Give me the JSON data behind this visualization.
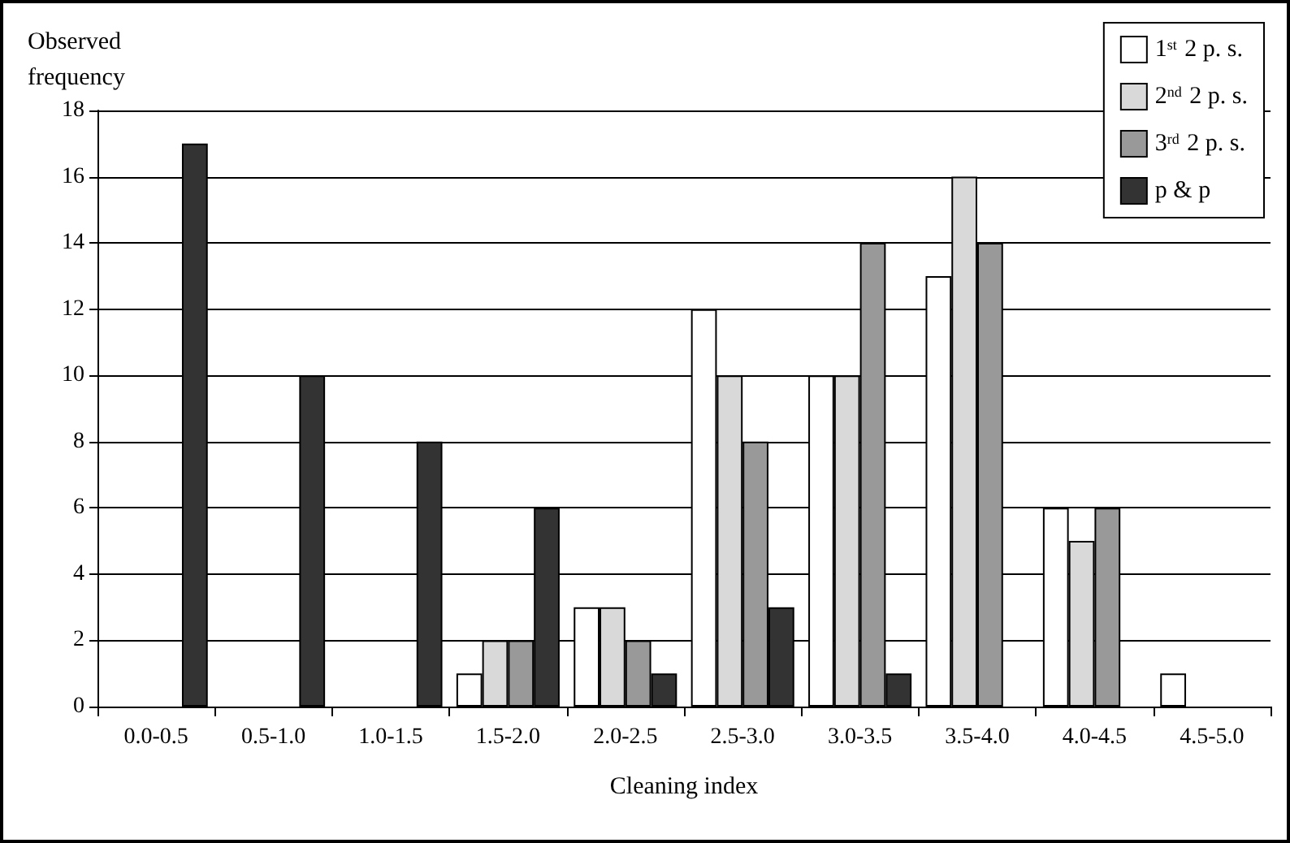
{
  "chart_data": {
    "type": "bar",
    "ylabel": "Observed\nfrequency",
    "xlabel": "Cleaning index",
    "categories": [
      "0.0-0.5",
      "0.5-1.0",
      "1.0-1.5",
      "1.5-2.0",
      "2.0-2.5",
      "2.5-3.0",
      "3.0-3.5",
      "3.5-4.0",
      "4.0-4.5",
      "4.5-5.0"
    ],
    "series": [
      {
        "name": "1$^{st}$ 2 p. s.",
        "color": "#ffffff",
        "values": [
          0,
          0,
          0,
          1,
          3,
          12,
          10,
          13,
          6,
          1
        ]
      },
      {
        "name": "2$^{nd}$ 2 p. s.",
        "color": "#d9d9d9",
        "values": [
          0,
          0,
          0,
          2,
          3,
          10,
          10,
          16,
          5,
          0
        ]
      },
      {
        "name": "3$^{rd}$ 2 p. s.",
        "color": "#999999",
        "values": [
          0,
          0,
          0,
          2,
          2,
          8,
          14,
          14,
          6,
          0
        ]
      },
      {
        "name": "p & p",
        "color": "#333333",
        "values": [
          17,
          10,
          8,
          6,
          1,
          3,
          1,
          0,
          0,
          0
        ]
      }
    ],
    "ylim": [
      0,
      18
    ],
    "yticks": [
      0,
      2,
      4,
      6,
      8,
      10,
      12,
      14,
      16,
      18
    ],
    "grid": "y",
    "legend": "top right"
  }
}
